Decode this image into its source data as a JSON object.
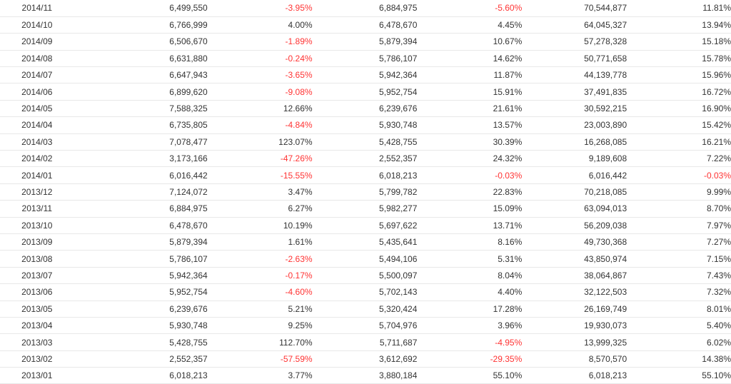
{
  "colors": {
    "negative": "#ff3333",
    "text": "#333333",
    "row_border": "#e8e8e8"
  },
  "rows": [
    {
      "month": "2014/11",
      "v1": "6,499,550",
      "p1": "-3.95%",
      "v2": "6,884,975",
      "p2": "-5.60%",
      "v3": "70,544,877",
      "p3": "11.81%"
    },
    {
      "month": "2014/10",
      "v1": "6,766,999",
      "p1": "4.00%",
      "v2": "6,478,670",
      "p2": "4.45%",
      "v3": "64,045,327",
      "p3": "13.94%"
    },
    {
      "month": "2014/09",
      "v1": "6,506,670",
      "p1": "-1.89%",
      "v2": "5,879,394",
      "p2": "10.67%",
      "v3": "57,278,328",
      "p3": "15.18%"
    },
    {
      "month": "2014/08",
      "v1": "6,631,880",
      "p1": "-0.24%",
      "v2": "5,786,107",
      "p2": "14.62%",
      "v3": "50,771,658",
      "p3": "15.78%"
    },
    {
      "month": "2014/07",
      "v1": "6,647,943",
      "p1": "-3.65%",
      "v2": "5,942,364",
      "p2": "11.87%",
      "v3": "44,139,778",
      "p3": "15.96%"
    },
    {
      "month": "2014/06",
      "v1": "6,899,620",
      "p1": "-9.08%",
      "v2": "5,952,754",
      "p2": "15.91%",
      "v3": "37,491,835",
      "p3": "16.72%"
    },
    {
      "month": "2014/05",
      "v1": "7,588,325",
      "p1": "12.66%",
      "v2": "6,239,676",
      "p2": "21.61%",
      "v3": "30,592,215",
      "p3": "16.90%"
    },
    {
      "month": "2014/04",
      "v1": "6,735,805",
      "p1": "-4.84%",
      "v2": "5,930,748",
      "p2": "13.57%",
      "v3": "23,003,890",
      "p3": "15.42%"
    },
    {
      "month": "2014/03",
      "v1": "7,078,477",
      "p1": "123.07%",
      "v2": "5,428,755",
      "p2": "30.39%",
      "v3": "16,268,085",
      "p3": "16.21%"
    },
    {
      "month": "2014/02",
      "v1": "3,173,166",
      "p1": "-47.26%",
      "v2": "2,552,357",
      "p2": "24.32%",
      "v3": "9,189,608",
      "p3": "7.22%"
    },
    {
      "month": "2014/01",
      "v1": "6,016,442",
      "p1": "-15.55%",
      "v2": "6,018,213",
      "p2": "-0.03%",
      "v3": "6,016,442",
      "p3": "-0.03%"
    },
    {
      "month": "2013/12",
      "v1": "7,124,072",
      "p1": "3.47%",
      "v2": "5,799,782",
      "p2": "22.83%",
      "v3": "70,218,085",
      "p3": "9.99%"
    },
    {
      "month": "2013/11",
      "v1": "6,884,975",
      "p1": "6.27%",
      "v2": "5,982,277",
      "p2": "15.09%",
      "v3": "63,094,013",
      "p3": "8.70%"
    },
    {
      "month": "2013/10",
      "v1": "6,478,670",
      "p1": "10.19%",
      "v2": "5,697,622",
      "p2": "13.71%",
      "v3": "56,209,038",
      "p3": "7.97%"
    },
    {
      "month": "2013/09",
      "v1": "5,879,394",
      "p1": "1.61%",
      "v2": "5,435,641",
      "p2": "8.16%",
      "v3": "49,730,368",
      "p3": "7.27%"
    },
    {
      "month": "2013/08",
      "v1": "5,786,107",
      "p1": "-2.63%",
      "v2": "5,494,106",
      "p2": "5.31%",
      "v3": "43,850,974",
      "p3": "7.15%"
    },
    {
      "month": "2013/07",
      "v1": "5,942,364",
      "p1": "-0.17%",
      "v2": "5,500,097",
      "p2": "8.04%",
      "v3": "38,064,867",
      "p3": "7.43%"
    },
    {
      "month": "2013/06",
      "v1": "5,952,754",
      "p1": "-4.60%",
      "v2": "5,702,143",
      "p2": "4.40%",
      "v3": "32,122,503",
      "p3": "7.32%"
    },
    {
      "month": "2013/05",
      "v1": "6,239,676",
      "p1": "5.21%",
      "v2": "5,320,424",
      "p2": "17.28%",
      "v3": "26,169,749",
      "p3": "8.01%"
    },
    {
      "month": "2013/04",
      "v1": "5,930,748",
      "p1": "9.25%",
      "v2": "5,704,976",
      "p2": "3.96%",
      "v3": "19,930,073",
      "p3": "5.40%"
    },
    {
      "month": "2013/03",
      "v1": "5,428,755",
      "p1": "112.70%",
      "v2": "5,711,687",
      "p2": "-4.95%",
      "v3": "13,999,325",
      "p3": "6.02%"
    },
    {
      "month": "2013/02",
      "v1": "2,552,357",
      "p1": "-57.59%",
      "v2": "3,612,692",
      "p2": "-29.35%",
      "v3": "8,570,570",
      "p3": "14.38%"
    },
    {
      "month": "2013/01",
      "v1": "6,018,213",
      "p1": "3.77%",
      "v2": "3,880,184",
      "p2": "55.10%",
      "v3": "6,018,213",
      "p3": "55.10%"
    }
  ]
}
